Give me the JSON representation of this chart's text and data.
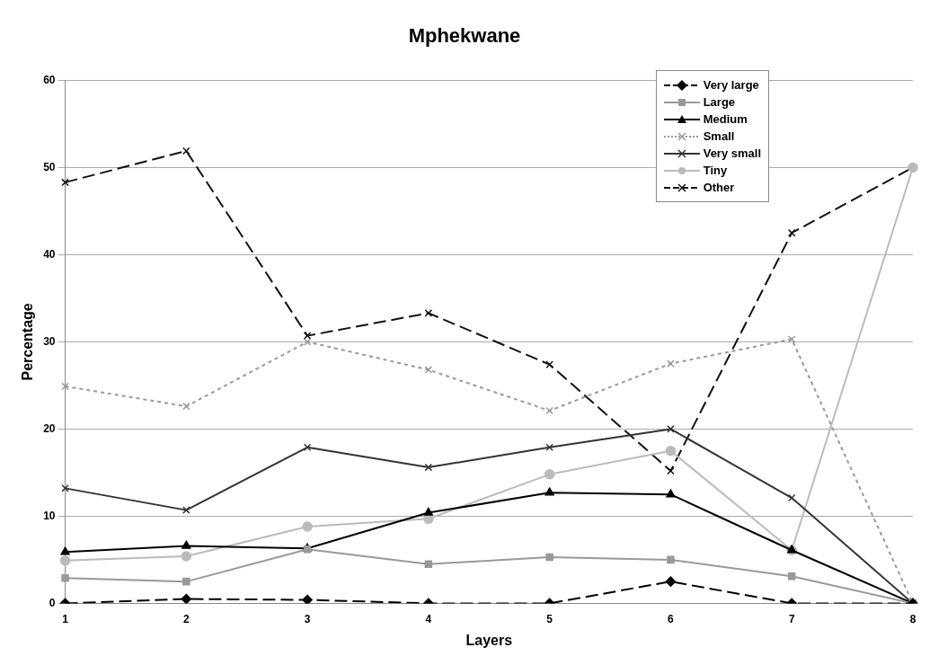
{
  "chart_data": {
    "type": "line",
    "title": "Mphekwane",
    "xlabel": "Layers",
    "ylabel": "Percentage",
    "categories": [
      "1",
      "2",
      "3",
      "4",
      "5",
      "6",
      "7",
      "8"
    ],
    "ylim": [
      0,
      60
    ],
    "yticks": [
      0,
      10,
      20,
      30,
      40,
      50,
      60
    ],
    "grid": "y",
    "legend": "top right",
    "series": [
      {
        "name": "Very large",
        "color": "#000000",
        "marker": "diamond",
        "line_style": "dashed",
        "values": [
          0,
          0.5,
          0.4,
          0,
          0,
          2.5,
          0,
          0
        ]
      },
      {
        "name": "Large",
        "color": "#999999",
        "marker": "square",
        "line_style": "solid",
        "values": [
          2.9,
          2.5,
          6.2,
          4.5,
          5.3,
          5.0,
          3.1,
          0
        ]
      },
      {
        "name": "Medium",
        "color": "#000000",
        "marker": "triangle",
        "line_style": "solid",
        "values": [
          5.9,
          6.6,
          6.3,
          10.4,
          12.7,
          12.5,
          6.1,
          0
        ]
      },
      {
        "name": "Small",
        "color": "#999999",
        "marker": "cross",
        "line_style": "dotted",
        "values": [
          24.9,
          22.6,
          30.0,
          26.8,
          22.1,
          27.5,
          30.3,
          0
        ]
      },
      {
        "name": "Very small",
        "color": "#333333",
        "marker": "cross",
        "line_style": "solid",
        "values": [
          13.2,
          10.7,
          17.9,
          15.6,
          17.9,
          20.0,
          12.1,
          0
        ]
      },
      {
        "name": "Tiny",
        "color": "#bbbbbb",
        "marker": "circle",
        "line_style": "solid",
        "values": [
          4.9,
          5.4,
          8.8,
          9.7,
          14.8,
          17.5,
          6.1,
          50
        ]
      },
      {
        "name": "Other",
        "color": "#111111",
        "marker": "cross",
        "line_style": "dashed",
        "values": [
          48.3,
          51.9,
          30.7,
          33.3,
          27.4,
          15.2,
          42.5,
          50
        ]
      }
    ]
  }
}
